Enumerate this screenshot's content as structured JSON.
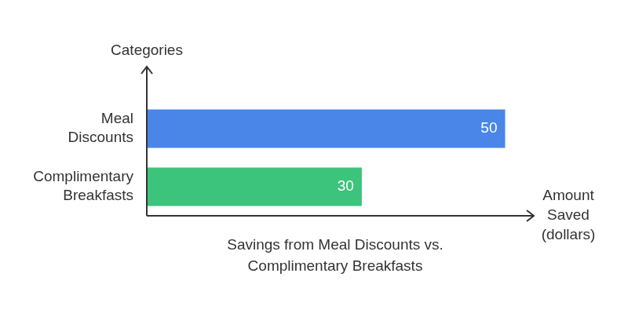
{
  "chart_data": {
    "type": "bar",
    "orientation": "horizontal",
    "title": "Savings from Meal Discounts vs. Complimentary Breakfasts",
    "x_label": "Amount Saved (dollars)",
    "y_label": "Categories",
    "categories": [
      "Meal Discounts",
      "Complimentary Breakfasts"
    ],
    "values": [
      50,
      30
    ],
    "colors": [
      "#4a86e8",
      "#3cc47c"
    ],
    "xlim": [
      0,
      54
    ],
    "grid": false,
    "data_labels": true,
    "tick_labels": "y"
  }
}
